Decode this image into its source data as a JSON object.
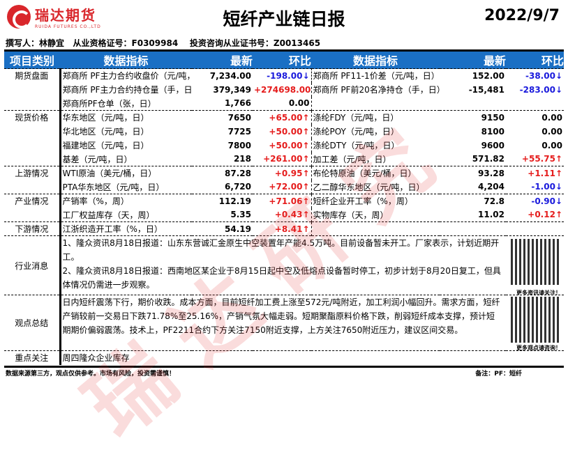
{
  "header": {
    "logo_cn": "瑞达期货",
    "logo_en": "RUIDA FUTURES CO.,LTD",
    "title": "短纤产业链日报",
    "date": "2022/9/7"
  },
  "author_line": "撰写人：林静宜   从业资格证号：F0309984    投资咨询从业证书号：Z0013465",
  "columns": [
    "项目类别",
    "数据指标",
    "最新",
    "环比",
    "数据指标",
    "最新",
    "环比"
  ],
  "rows": [
    {
      "cat": "期货盘面",
      "sep": true,
      "l": [
        "郑商所 PF主力合约收盘价（元/吨，",
        "7,234.00",
        "-198.00↓",
        "down"
      ],
      "r": [
        "郑商所 PF11-1价差（元/吨，日）",
        "152.00",
        "-38.00↓",
        "down"
      ]
    },
    {
      "cat": "",
      "l": [
        "郑商所 PF主力合约持仓量（手，日",
        "379,349",
        "+274698.00↑",
        "up"
      ],
      "r": [
        "郑商所 PF前20名净持仓（手，日）",
        "-15,481",
        "-283.00↓",
        "down"
      ]
    },
    {
      "cat": "",
      "l": [
        "郑商所PF仓单（张，日）",
        "1,766",
        "0.00",
        ""
      ],
      "r": [
        "",
        "",
        "",
        ""
      ]
    },
    {
      "cat": "现货价格",
      "sep": true,
      "l": [
        "华东地区（元/吨，日）",
        "7650",
        "+65.00↑",
        "up"
      ],
      "r": [
        "涤纶FDY（元/吨，日）",
        "9150",
        "0.00",
        ""
      ]
    },
    {
      "cat": "",
      "l": [
        "华北地区（元/吨，日）",
        "7725",
        "+50.00↑",
        "up"
      ],
      "r": [
        "涤纶POY（元/吨，日）",
        "8100",
        "0.00",
        ""
      ]
    },
    {
      "cat": "",
      "l": [
        "福建地区（元/吨，日）",
        "7800",
        "+50.00↑",
        "up"
      ],
      "r": [
        "涤纶DTY（元/吨，日）",
        "9600",
        "0.00",
        ""
      ]
    },
    {
      "cat": "",
      "l": [
        "基差（元/吨，日）",
        "218",
        "+261.00↑",
        "up"
      ],
      "r": [
        "加工差（元/吨，日）",
        "571.82",
        "+55.75↑",
        "up"
      ]
    },
    {
      "cat": "上游情况",
      "sep": true,
      "l": [
        "WTI原油（美元/桶，日）",
        "87.28",
        "+0.95↑",
        "up"
      ],
      "r": [
        "布伦特原油（美元/桶，日）",
        "93.28",
        "+1.11↑",
        "up"
      ]
    },
    {
      "cat": "",
      "l": [
        "PTA华东地区（元/吨，日）",
        "6,720",
        "+72.00↑",
        "up"
      ],
      "r": [
        "乙二醇华东地区（元/吨，日）",
        "4,204",
        "-1.00↓",
        "down"
      ]
    },
    {
      "cat": "产业情况",
      "sep": true,
      "l": [
        "产销率（%，周）",
        "112.19",
        "+71.06↑",
        "up"
      ],
      "r": [
        "短纤企业开工率（%，周）",
        "72.8",
        "-0.90↓",
        "down"
      ]
    },
    {
      "cat": "",
      "l": [
        "工厂权益库存（天，周）",
        "5.35",
        "+0.43↑",
        "up"
      ],
      "r": [
        "实物库存（天，周）",
        "11.02",
        "+0.12↑",
        "up"
      ]
    },
    {
      "cat": "下游情况",
      "sep": true,
      "l": [
        "江浙织造开工率（%，日）",
        "54.19",
        "+8.41↑",
        "up"
      ],
      "r": [
        "",
        "",
        "",
        ""
      ]
    }
  ],
  "news": {
    "label": "行业消息",
    "text1": "1、隆众资讯8月18日报道：山东东营诚汇金原生中空装置年产能4.5万吨。目前设备暂未开工。厂家表示，计划近期开工。",
    "text2": "2、隆众资讯8月18日报道：西南地区某企业于8月15日起中空及低熔点设备暂时停工，初步计划于8月20日复工，但具体情况仍需进一步观察。",
    "qr_caption": "更多资讯请关注！"
  },
  "view": {
    "label": "观点总结",
    "text": "日内短纤震荡下行，期价收跌。成本方面，目前短纤加工费上涨至572元/吨附近，加工利润小幅回升。需求方面，短纤产销较前一交易日下跌71.78%至25.16%，产销气氛大幅走弱。短期聚酯原料价格下跌，削弱短纤成本支撑，预计短期期价偏弱震荡。技术上，PF2211合约下方关注7150附近支撑，上方关注7650附近压力，建议区间交易。",
    "qr_caption": "更多观点请咨询！"
  },
  "focus": {
    "label": "重点关注",
    "text": "周四隆众企业库存"
  },
  "footer": {
    "disclaimer": "数据来源第三方，观点仅供参考。市场有风险，投资需谨慎！",
    "note": "备注：PF：短纤"
  },
  "watermark": "瑞达研究",
  "colors": {
    "header_bg": "#1a6fc4",
    "up": "#e51c1c",
    "down": "#1a1adc",
    "brand": "#d9262b"
  }
}
